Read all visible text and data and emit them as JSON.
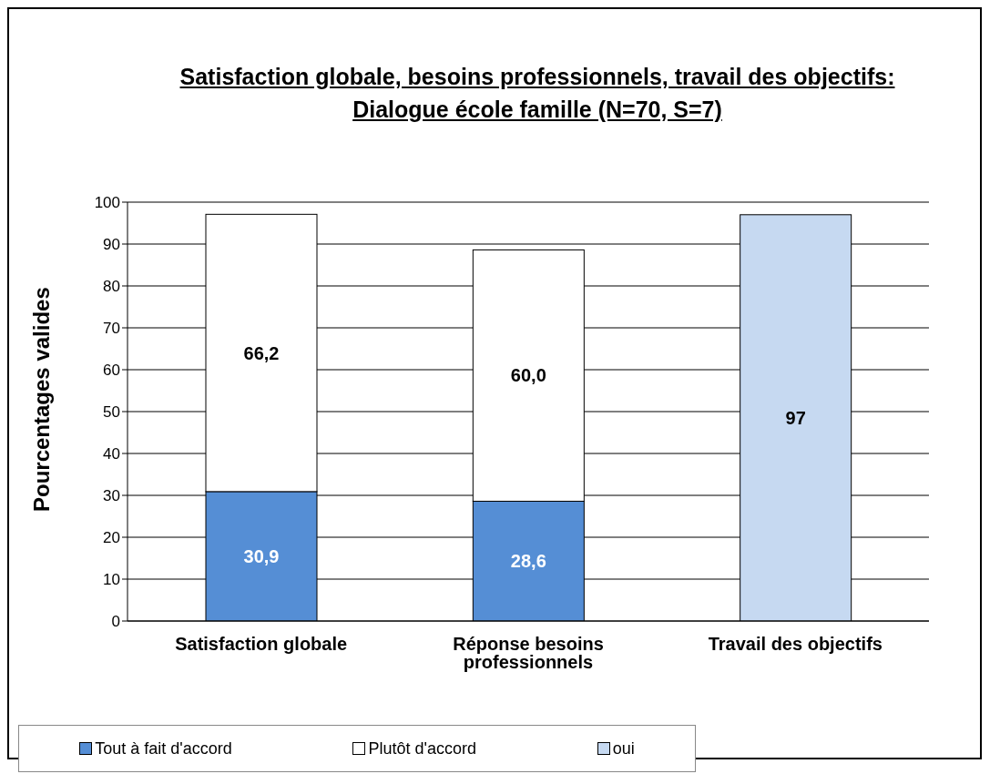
{
  "chart_data": {
    "type": "bar",
    "title": "Satisfaction globale, besoins professionnels, travail des objectifs:",
    "subtitle": "Dialogue école famille (N=70, S=7)",
    "ylabel": "Pourcentages valides",
    "categories": [
      "Satisfaction globale",
      "Réponse besoins professionnels",
      "Travail des objectifs"
    ],
    "stacked": true,
    "series": [
      {
        "name": "Tout à fait d'accord",
        "color": "#558ed5",
        "values": [
          30.9,
          28.6,
          null
        ],
        "value_labels": [
          "30,9",
          "28,6",
          null
        ]
      },
      {
        "name": "Plutôt d'accord",
        "color": "#ffffff",
        "values": [
          66.2,
          60.0,
          null
        ],
        "value_labels": [
          "66,2",
          "60,0",
          null
        ]
      },
      {
        "name": "oui",
        "color": "#c6d9f1",
        "values": [
          null,
          null,
          97
        ],
        "value_labels": [
          null,
          null,
          "97"
        ]
      }
    ],
    "ylim": [
      0,
      100
    ],
    "yticks": [
      0,
      10,
      20,
      30,
      40,
      50,
      60,
      70,
      80,
      90,
      100
    ],
    "grid": "y",
    "legend": "bottom"
  }
}
